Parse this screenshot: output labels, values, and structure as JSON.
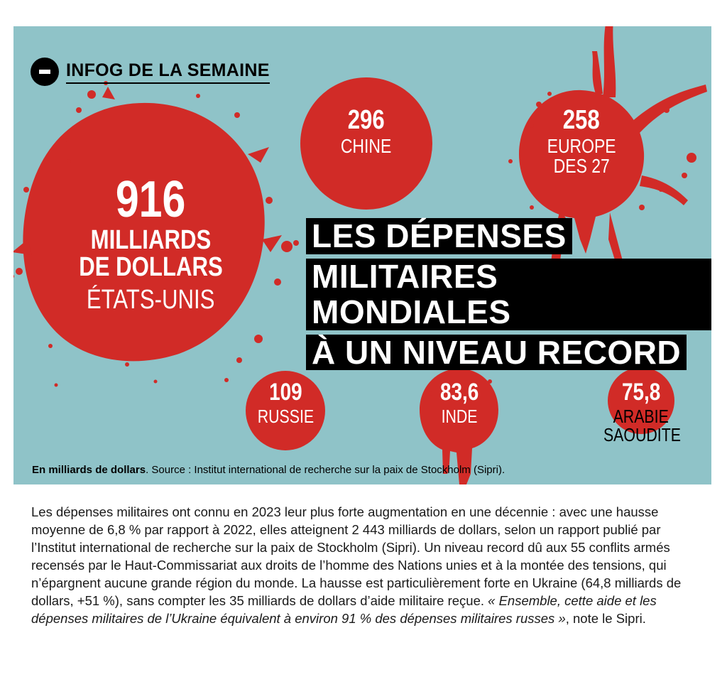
{
  "brand": {
    "label": "INFOG DE LA SEMAINE"
  },
  "headline": {
    "lines": [
      "LES DÉPENSES",
      "MILITAIRES MONDIALES",
      "À UN NIVEAU RECORD"
    ]
  },
  "chart_data": {
    "type": "bubble",
    "title": "LES DÉPENSES MILITAIRES MONDIALES À UN NIVEAU RECORD",
    "unit": "En milliards de dollars",
    "categories": [
      "ÉTATS-UNIS",
      "CHINE",
      "EUROPE DES 27",
      "RUSSIE",
      "INDE",
      "ARABIE SAOUDITE"
    ],
    "values": [
      916,
      296,
      258,
      109,
      83.6,
      75.8
    ],
    "value_labels": [
      "916",
      "296",
      "258",
      "109",
      "83,6",
      "75,8"
    ],
    "usa_unit_label": "MILLIARDS DE DOLLARS",
    "colors": {
      "bubble": "#d12b27",
      "background": "#8fc3c8"
    }
  },
  "labels": {
    "usa_name": "ÉTATS-UNIS",
    "china_name": "CHINE",
    "europe_line1": "EUROPE",
    "europe_line2": "DES 27",
    "russia_name": "RUSSIE",
    "india_name": "INDE",
    "saudi_line1": "ARABIE",
    "saudi_line2": "SAOUDITE",
    "usa_unit_line1": "MILLIARDS",
    "usa_unit_line2": "DE DOLLARS"
  },
  "source": {
    "bold": "En milliards de dollars",
    "text": ". Source : Institut international de recherche sur la paix de Stockholm (Sipri)."
  },
  "article": {
    "p1": "Les dépenses militaires ont connu en 2023 leur plus forte augmentation en une décennie : avec une hausse moyenne de 6,8 % par rapport à 2022, elles atteignent 2 443 milliards de dollars, selon un rapport publié par l’Institut international de recherche sur la paix de Stockholm (Sipri). Un niveau record dû aux 55 conflits armés recensés par le Haut-Commissariat aux droits de l’homme des Nations unies et à la montée des tensions, qui n’épargnent aucune grande région du monde. La hausse est particulièrement forte en Ukraine (64,8 milliards de dollars, +51 %), sans compter les 35 milliards de dollars d’aide militaire reçue. ",
    "quote": "« Ensemble, cette aide et les dépenses militaires de l’Ukraine équivalent à environ 91 % des dépenses militaires russes »",
    "p2": ", note le Sipri."
  }
}
